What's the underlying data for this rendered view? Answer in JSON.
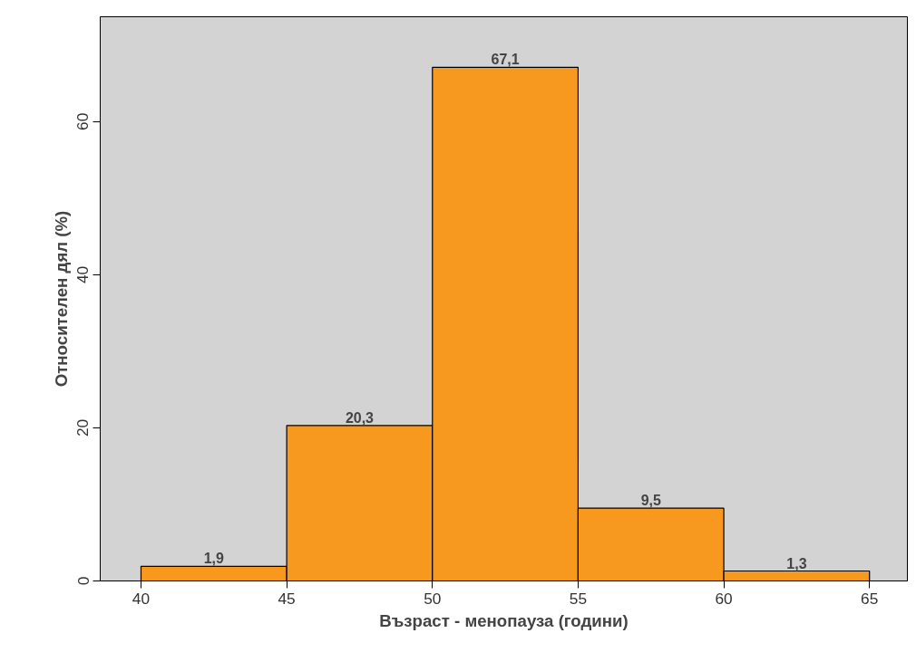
{
  "chart_data": {
    "type": "histogram",
    "xlabel": "Възраст - менопауза (години)",
    "ylabel": "Относителен дял (%)",
    "bins": [
      40,
      45,
      50,
      55,
      60,
      65
    ],
    "values": [
      1.9,
      20.3,
      67.1,
      9.5,
      1.3
    ],
    "value_labels": [
      "1,9",
      "20,3",
      "67,1",
      "9,5",
      "1,3"
    ],
    "color": "#f7991f",
    "xlim": [
      38.6,
      66.3
    ],
    "xticks": [
      40,
      45,
      50,
      55,
      60,
      65
    ],
    "ylim": [
      0,
      73.7
    ],
    "yticks": [
      0,
      20,
      40,
      60
    ],
    "grid": false
  }
}
